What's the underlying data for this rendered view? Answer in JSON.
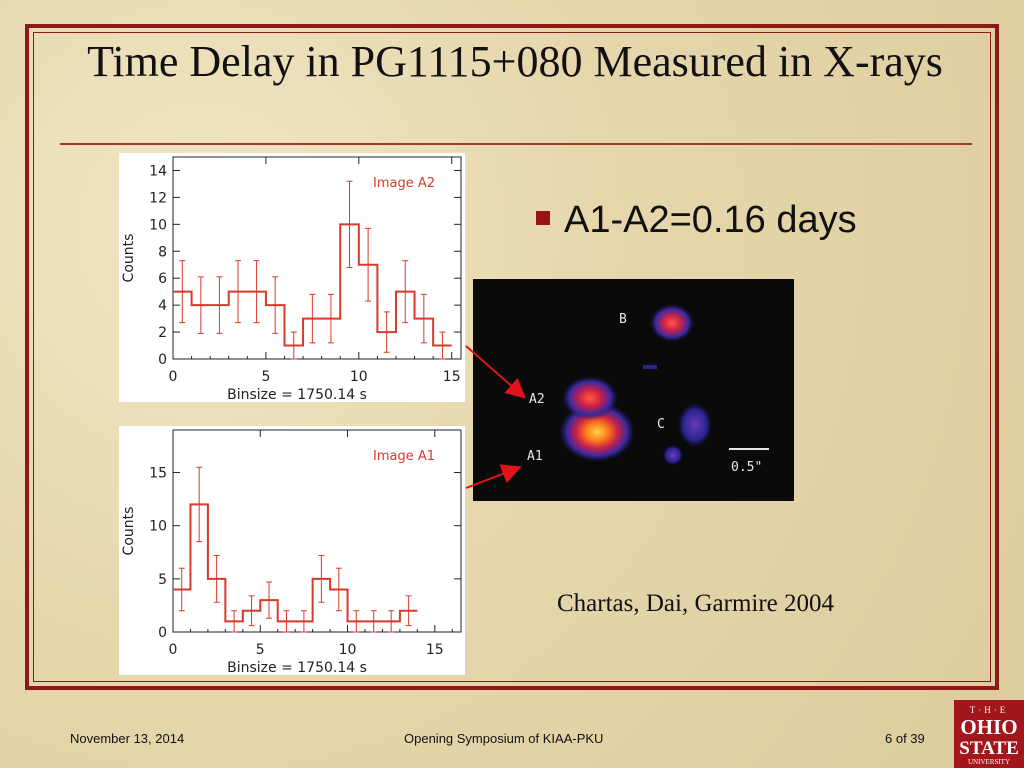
{
  "slide": {
    "title": "Time Delay in PG1115+080 Measured in X-rays",
    "bullet": "A1-A2=0.16 days",
    "citation": "Chartas, Dai, Garmire 2004"
  },
  "footer": {
    "date": "November 13, 2014",
    "event": "Opening Symposium of KIAA-PKU",
    "page": "6 of 39"
  },
  "logo": {
    "lines": [
      "THE",
      "OHIO",
      "STATE",
      "UNIVERSITY"
    ],
    "color": "#a3161b"
  },
  "xray_image": {
    "labels": {
      "B": "B",
      "C": "C",
      "A1": "A1",
      "A2": "A2"
    },
    "scalebar": "0.5\""
  },
  "colors": {
    "frame": "#8b1a1a",
    "curve": "#d83a2a",
    "arrow": "#e0141a",
    "bullet": "#9b1414"
  },
  "chart_data": [
    {
      "type": "line",
      "step": true,
      "annotation": "Image A2",
      "xlabel": "Binsize = 1750.14 s",
      "ylabel": "Counts",
      "xlim": [
        0,
        15.5
      ],
      "ylim": [
        0,
        15
      ],
      "xticks": [
        0,
        5,
        10,
        15
      ],
      "yticks": [
        0,
        2,
        4,
        6,
        8,
        10,
        12,
        14
      ],
      "x": [
        0.5,
        1.5,
        2.5,
        3.5,
        4.5,
        5.5,
        6.5,
        7.5,
        8.5,
        9.5,
        10.5,
        11.5,
        12.5,
        13.5,
        14.5
      ],
      "values": [
        5,
        4,
        4,
        5,
        5,
        4,
        1,
        3,
        3,
        10,
        7,
        2,
        5,
        3,
        1
      ],
      "errors": [
        2.3,
        2.1,
        2.1,
        2.3,
        2.3,
        2.1,
        1.0,
        1.8,
        1.8,
        3.2,
        2.7,
        1.5,
        2.3,
        1.8,
        1.0
      ]
    },
    {
      "type": "line",
      "step": true,
      "annotation": "Image A1",
      "xlabel": "Binsize = 1750.14 s",
      "ylabel": "Counts",
      "xlim": [
        0,
        16.5
      ],
      "ylim": [
        0,
        19
      ],
      "xticks": [
        0,
        5,
        10,
        15
      ],
      "yticks": [
        0,
        5,
        10,
        15
      ],
      "x": [
        0.5,
        1.5,
        2.5,
        3.5,
        4.5,
        5.5,
        6.5,
        7.5,
        8.5,
        9.5,
        10.5,
        11.5,
        12.5,
        13.5
      ],
      "values": [
        4,
        12,
        5,
        1,
        2,
        3,
        1,
        1,
        5,
        4,
        1,
        1,
        1,
        2
      ],
      "errors": [
        2.0,
        3.5,
        2.2,
        1.0,
        1.4,
        1.7,
        1.0,
        1.0,
        2.2,
        2.0,
        1.0,
        1.0,
        1.0,
        1.4
      ]
    }
  ]
}
